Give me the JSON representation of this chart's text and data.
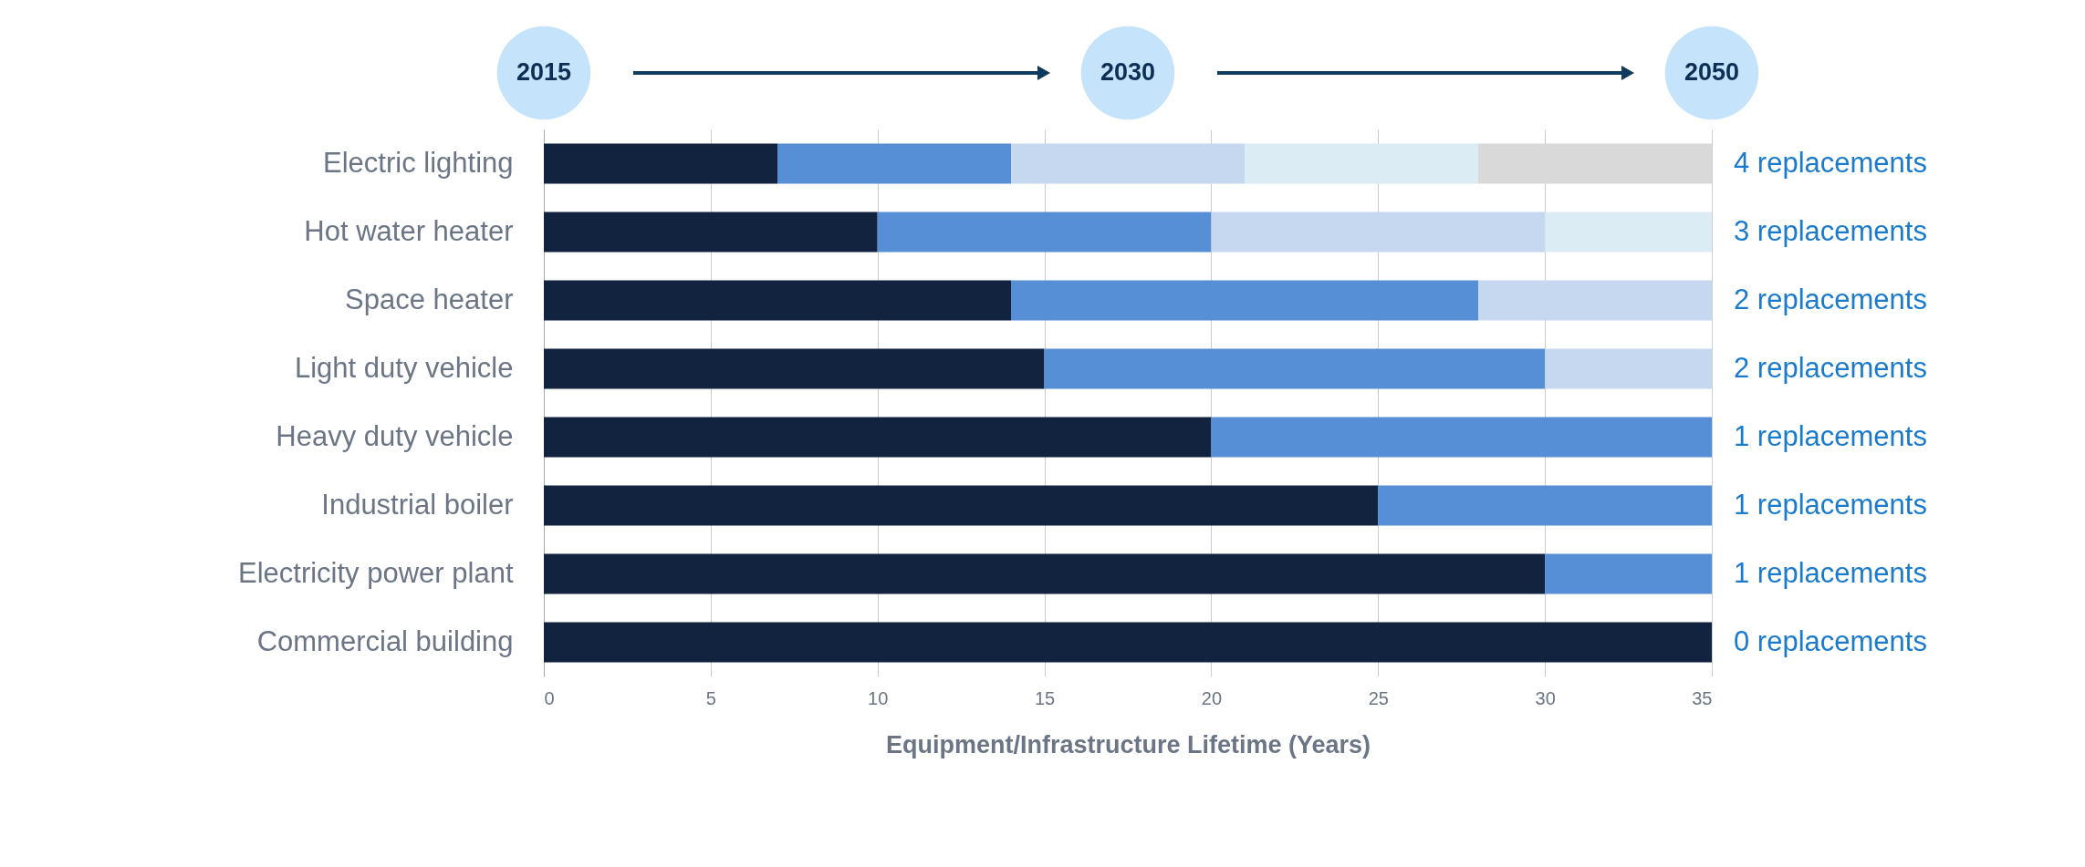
{
  "chart_data": {
    "type": "bar",
    "orientation": "horizontal",
    "stacked": true,
    "xlabel": "Equipment/Infrastructure Lifetime (Years)",
    "categories": [
      "Electric lighting",
      "Hot water heater",
      "Space heater",
      "Light duty vehicle",
      "Heavy duty vehicle",
      "Industrial boiler",
      "Electricity power plant",
      "Commercial building"
    ],
    "series": [
      {
        "color": "#12233f",
        "values": [
          7,
          10,
          14,
          15,
          20,
          25,
          30,
          35
        ]
      },
      {
        "color": "#568fd6",
        "values": [
          7,
          10,
          14,
          15,
          15,
          10,
          5,
          null
        ]
      },
      {
        "color": "#c5d8f0",
        "values": [
          7,
          10,
          7,
          5,
          null,
          null,
          null,
          null
        ]
      },
      {
        "color": "#dbecf4",
        "values": [
          7,
          5,
          null,
          null,
          null,
          null,
          null,
          null
        ]
      },
      {
        "color": "#d9d9d9",
        "values": [
          7,
          null,
          null,
          null,
          null,
          null,
          null,
          null
        ]
      }
    ],
    "xlim": [
      0,
      35
    ],
    "xticks": [
      0,
      5,
      10,
      15,
      20,
      25,
      30,
      35
    ],
    "grid": "x",
    "legend": false,
    "annotations": [
      "2015",
      "2030",
      "2050",
      "4 replacements",
      "3 replacements",
      "2 replacements",
      "2 replacements",
      "1 replacements",
      "1 replacements",
      "1 replacements",
      "0 replacements"
    ]
  }
}
